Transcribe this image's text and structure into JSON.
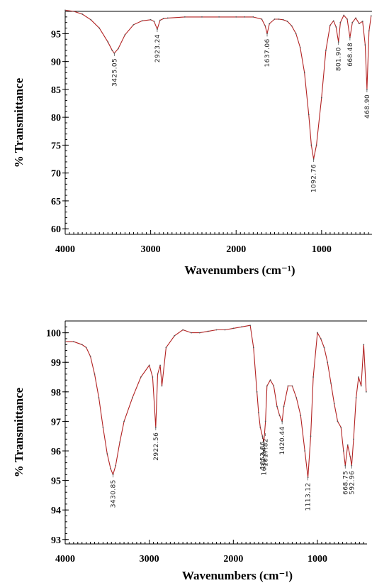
{
  "chart_data": [
    {
      "type": "line",
      "xlabel": "Wavenumbers (cm⁻¹)",
      "ylabel": "% Transmittance",
      "xlim": [
        4000,
        410
      ],
      "ylim": [
        59,
        99
      ],
      "x_reversed": true,
      "x_ticks": [
        4000,
        3000,
        2000,
        1000
      ],
      "y_ticks": [
        60,
        65,
        70,
        75,
        80,
        85,
        90,
        95
      ],
      "grid": false,
      "series_color": "#b22222",
      "series": [
        {
          "x": [
            4000,
            3900,
            3800,
            3700,
            3600,
            3500,
            3450,
            3425,
            3380,
            3300,
            3200,
            3100,
            3000,
            2960,
            2923,
            2890,
            2850,
            2800,
            2600,
            2400,
            2200,
            2000,
            1900,
            1800,
            1700,
            1660,
            1637,
            1610,
            1550,
            1500,
            1450,
            1400,
            1350,
            1300,
            1250,
            1200,
            1150,
            1120,
            1093,
            1060,
            1000,
            950,
            900,
            860,
            830,
            802,
            780,
            740,
            700,
            668,
            640,
            600,
            560,
            520,
            490,
            469,
            445,
            420
          ],
          "y": [
            99.2,
            99.0,
            98.5,
            97.5,
            96.0,
            93.5,
            92.0,
            91.5,
            92.3,
            94.8,
            96.6,
            97.3,
            97.5,
            97.2,
            95.8,
            97.4,
            97.7,
            97.8,
            98.0,
            98.0,
            98.0,
            98.0,
            98.0,
            98.0,
            97.6,
            96.4,
            95.0,
            96.8,
            97.6,
            97.6,
            97.5,
            97.2,
            96.4,
            95.0,
            92.5,
            88.0,
            80.5,
            75.0,
            72.5,
            75.0,
            83.5,
            92.0,
            96.5,
            97.3,
            96.2,
            93.5,
            97.0,
            98.3,
            97.6,
            94.3,
            97.0,
            97.8,
            96.8,
            97.2,
            93.0,
            85.0,
            95.5,
            98.2
          ]
        }
      ],
      "peak_labels": [
        {
          "x": 3425,
          "y": 91.5,
          "text": "3425.05"
        },
        {
          "x": 2923,
          "y": 95.8,
          "text": "2923.24"
        },
        {
          "x": 1637,
          "y": 95.0,
          "text": "1637.06"
        },
        {
          "x": 1093,
          "y": 72.5,
          "text": "1092.76"
        },
        {
          "x": 802,
          "y": 93.5,
          "text": "801.90"
        },
        {
          "x": 668,
          "y": 94.3,
          "text": "668.48"
        },
        {
          "x": 469,
          "y": 85.0,
          "text": "468.90"
        }
      ]
    },
    {
      "type": "line",
      "xlabel": "Wavenumbers (cm⁻¹)",
      "ylabel": "% Transmittance",
      "xlim": [
        4000,
        410
      ],
      "ylim": [
        92.85,
        100.4
      ],
      "x_reversed": true,
      "x_ticks": [
        4000,
        3000,
        2000,
        1000
      ],
      "y_ticks": [
        93,
        94,
        95,
        96,
        97,
        98,
        99,
        100
      ],
      "grid": false,
      "series_color": "#b22222",
      "series": [
        {
          "x": [
            4000,
            3900,
            3800,
            3750,
            3700,
            3650,
            3600,
            3550,
            3500,
            3460,
            3431,
            3400,
            3350,
            3300,
            3200,
            3100,
            3000,
            2960,
            2923,
            2900,
            2870,
            2850,
            2800,
            2700,
            2600,
            2500,
            2400,
            2300,
            2200,
            2100,
            2000,
            1900,
            1800,
            1760,
            1720,
            1700,
            1680,
            1654,
            1637,
            1618,
            1600,
            1560,
            1520,
            1480,
            1450,
            1420,
            1400,
            1350,
            1300,
            1250,
            1200,
            1150,
            1113,
            1080,
            1050,
            1000,
            960,
            920,
            880,
            840,
            800,
            760,
            720,
            690,
            669,
            640,
            610,
            593,
            570,
            540,
            510,
            480,
            450,
            420
          ],
          "y": [
            99.7,
            99.7,
            99.6,
            99.5,
            99.2,
            98.6,
            97.8,
            96.8,
            95.9,
            95.4,
            95.2,
            95.5,
            96.3,
            97.0,
            97.8,
            98.5,
            98.9,
            98.5,
            96.8,
            98.6,
            98.9,
            98.2,
            99.5,
            99.9,
            100.1,
            100.0,
            100.0,
            100.05,
            100.1,
            100.1,
            100.15,
            100.2,
            100.25,
            99.5,
            98.0,
            97.3,
            96.8,
            96.5,
            96.3,
            97.0,
            98.2,
            98.4,
            98.2,
            97.5,
            97.2,
            97.0,
            97.5,
            98.2,
            98.2,
            97.8,
            97.2,
            96.0,
            95.1,
            96.5,
            98.5,
            100.0,
            99.8,
            99.5,
            99.0,
            98.3,
            97.6,
            97.0,
            96.8,
            96.0,
            95.5,
            96.2,
            95.8,
            95.5,
            96.4,
            97.8,
            98.5,
            98.2,
            99.6,
            98.0
          ]
        }
      ],
      "peak_labels": [
        {
          "x": 3431,
          "y": 95.2,
          "text": "3430.85"
        },
        {
          "x": 2923,
          "y": 96.8,
          "text": "2922.56"
        },
        {
          "x": 1654,
          "y": 96.5,
          "text": "1653.86"
        },
        {
          "x": 1637,
          "y": 96.3,
          "text": "1637.04"
        },
        {
          "x": 1618,
          "y": 96.6,
          "text": "1617.82"
        },
        {
          "x": 1420,
          "y": 97.0,
          "text": "1420.44"
        },
        {
          "x": 1113,
          "y": 95.1,
          "text": "1113.12"
        },
        {
          "x": 669,
          "y": 95.5,
          "text": "668.75"
        },
        {
          "x": 593,
          "y": 95.5,
          "text": "592.96"
        }
      ]
    }
  ]
}
